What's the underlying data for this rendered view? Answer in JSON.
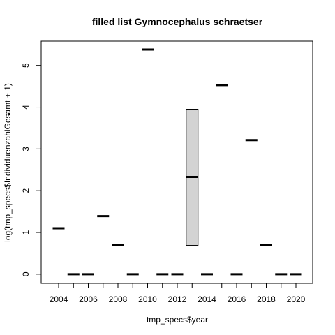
{
  "chart_data": {
    "type": "box",
    "title": "filled list Gymnocephalus schraetser",
    "xlabel": "tmp_specs$year",
    "ylabel": "log(tmp_specs$IndividuenzahlGesamt + 1)",
    "ylim": [
      -0.22,
      5.58
    ],
    "y_ticks": [
      0,
      1,
      2,
      3,
      4,
      5
    ],
    "x_tick_labels": [
      "2004",
      "2006",
      "2008",
      "2010",
      "2012",
      "2014",
      "2016",
      "2018",
      "2020"
    ],
    "categories": [
      "2004",
      "2005",
      "2006",
      "2007",
      "2008",
      "2009",
      "2010",
      "2011",
      "2012",
      "2013",
      "2014",
      "2015",
      "2016",
      "2017",
      "2018",
      "2019",
      "2020"
    ],
    "medians": [
      1.1,
      0,
      0,
      1.39,
      0.69,
      0,
      5.38,
      0,
      0,
      2.33,
      0,
      4.53,
      0,
      3.21,
      0.69,
      0,
      0
    ],
    "boxes": [
      {
        "category": "2013",
        "q1": 0.69,
        "median": 2.33,
        "q3": 3.95
      }
    ],
    "colors": {
      "box_fill": "#d3d3d3",
      "line": "#000000"
    }
  }
}
